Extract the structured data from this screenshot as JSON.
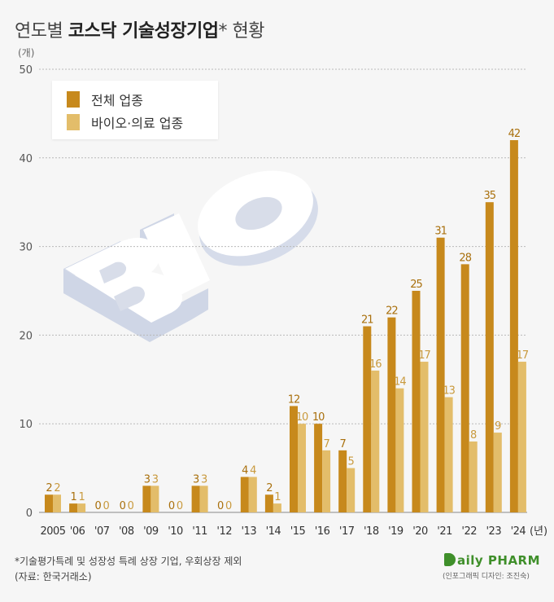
{
  "title": {
    "part1": "연도별 ",
    "part2": "코스닥 기술성장기업",
    "part3": "* 현황"
  },
  "unit_label": "(개)",
  "legend": {
    "total": "전체 업종",
    "bio": "바이오·의료 업종"
  },
  "colors": {
    "total": "#c7891c",
    "bio": "#e3bd6a",
    "grid": "#b9b9b9",
    "axis_text": "#555555"
  },
  "chart_data": {
    "type": "bar",
    "categories": [
      "2005",
      "'06",
      "'07",
      "'08",
      "'09",
      "'10",
      "'11",
      "'12",
      "'13",
      "'14",
      "'15",
      "'16",
      "'17",
      "'18",
      "'19",
      "'20",
      "'21",
      "'22",
      "'23",
      "'24"
    ],
    "x_unit": "(년)",
    "series": [
      {
        "name": "전체 업종",
        "values": [
          2,
          1,
          0,
          0,
          3,
          0,
          3,
          0,
          4,
          2,
          12,
          10,
          7,
          21,
          22,
          25,
          31,
          28,
          35,
          42
        ]
      },
      {
        "name": "바이오·의료 업종",
        "values": [
          2,
          1,
          0,
          0,
          3,
          0,
          3,
          0,
          4,
          1,
          10,
          7,
          5,
          16,
          14,
          17,
          13,
          8,
          9,
          17
        ]
      }
    ],
    "ylim": [
      0,
      50
    ],
    "yticks": [
      0,
      10,
      20,
      30,
      40,
      50
    ],
    "grid": true,
    "legend_position": "top-left"
  },
  "footnote": {
    "line1": "*기술평가특례 및 성장성 특례 상장 기업, 우회상장 제외",
    "line2": "(자료: 한국거래소)"
  },
  "logo": {
    "text": "aily PHARM",
    "designer": "(인포그래픽 디자인: 조진숙)"
  }
}
